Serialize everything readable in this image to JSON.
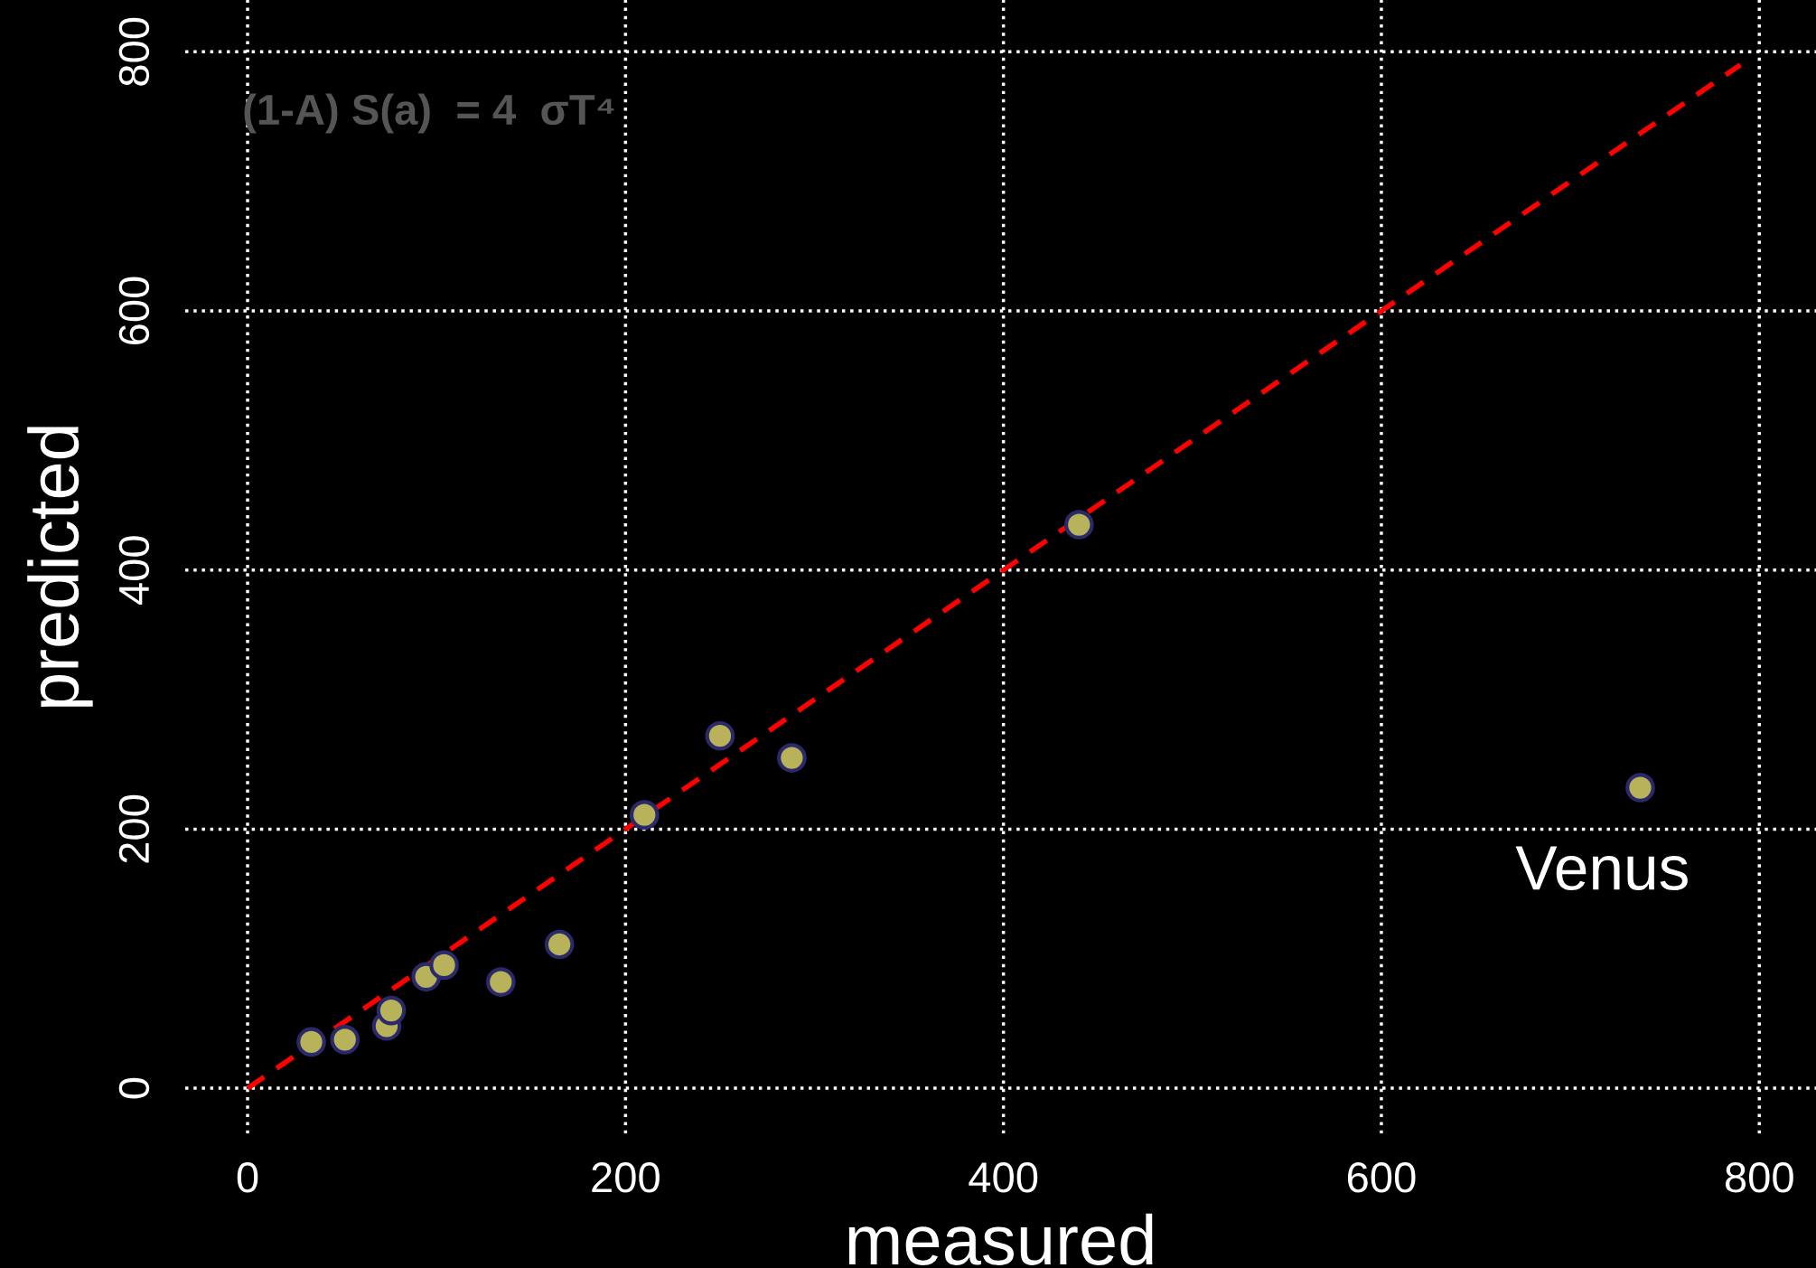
{
  "chart_data": {
    "type": "scatter",
    "xlabel": "measured",
    "ylabel": "predicted",
    "xlim": [
      -33,
      830
    ],
    "ylim": [
      -35,
      840
    ],
    "xticks": [
      0,
      200,
      400,
      600,
      800
    ],
    "yticks": [
      0,
      200,
      400,
      600,
      800
    ],
    "grid": true,
    "series": [
      {
        "marker": "circle",
        "color": "#b8b25a",
        "x": [
          33.7,
          51.5,
          73.6,
          76,
          94.5,
          104,
          134,
          165,
          210,
          250,
          288,
          440,
          737
        ],
        "values": [
          35.7,
          37.5,
          48,
          60,
          86,
          95,
          82,
          111,
          211,
          272,
          255,
          435,
          232
        ]
      },
      {
        "type": "line",
        "marker": "none",
        "color": "#ff0000",
        "line_style": "dashed",
        "x": [
          0,
          790
        ],
        "values": [
          0,
          790
        ]
      }
    ],
    "annotations": [
      "(1-A) S(a)  = 4  σT⁴",
      {
        "text": "Venus",
        "x": 737,
        "y": 232
      }
    ]
  }
}
